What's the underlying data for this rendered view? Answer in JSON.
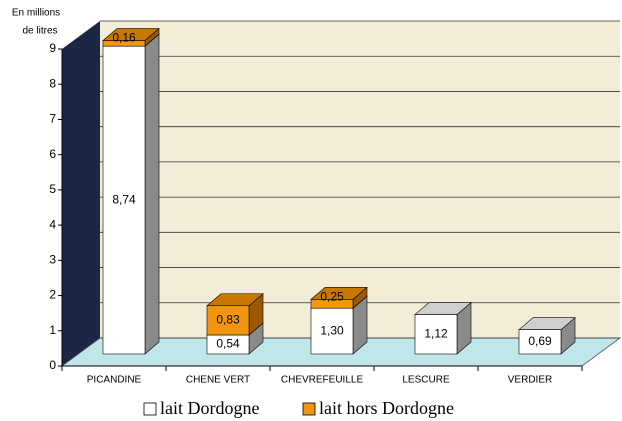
{
  "chart_data": {
    "type": "bar3d_stacked",
    "y_label": [
      "En millions",
      "de litres"
    ],
    "categories": [
      "PICANDINE",
      "CHENE VERT",
      "CHEVREFEUILLE",
      "LESCURE",
      "VERDIER"
    ],
    "series": [
      {
        "name": "lait Dordogne",
        "color": "#ffffff",
        "values": [
          8.74,
          0.54,
          1.3,
          1.12,
          0.69
        ],
        "value_labels": [
          "8,74",
          "0,54",
          "1,30",
          "1,12",
          "0,69"
        ]
      },
      {
        "name": "lait hors Dordogne",
        "color": "#f2960f",
        "values": [
          0.16,
          0.83,
          0.25,
          null,
          null
        ],
        "value_labels": [
          "0,16",
          "0,83",
          "0,25",
          null,
          null
        ]
      }
    ],
    "ylim": [
      0,
      9
    ],
    "yticks": [
      0,
      1,
      2,
      3,
      4,
      5,
      6,
      7,
      8,
      9
    ],
    "grid": true
  }
}
